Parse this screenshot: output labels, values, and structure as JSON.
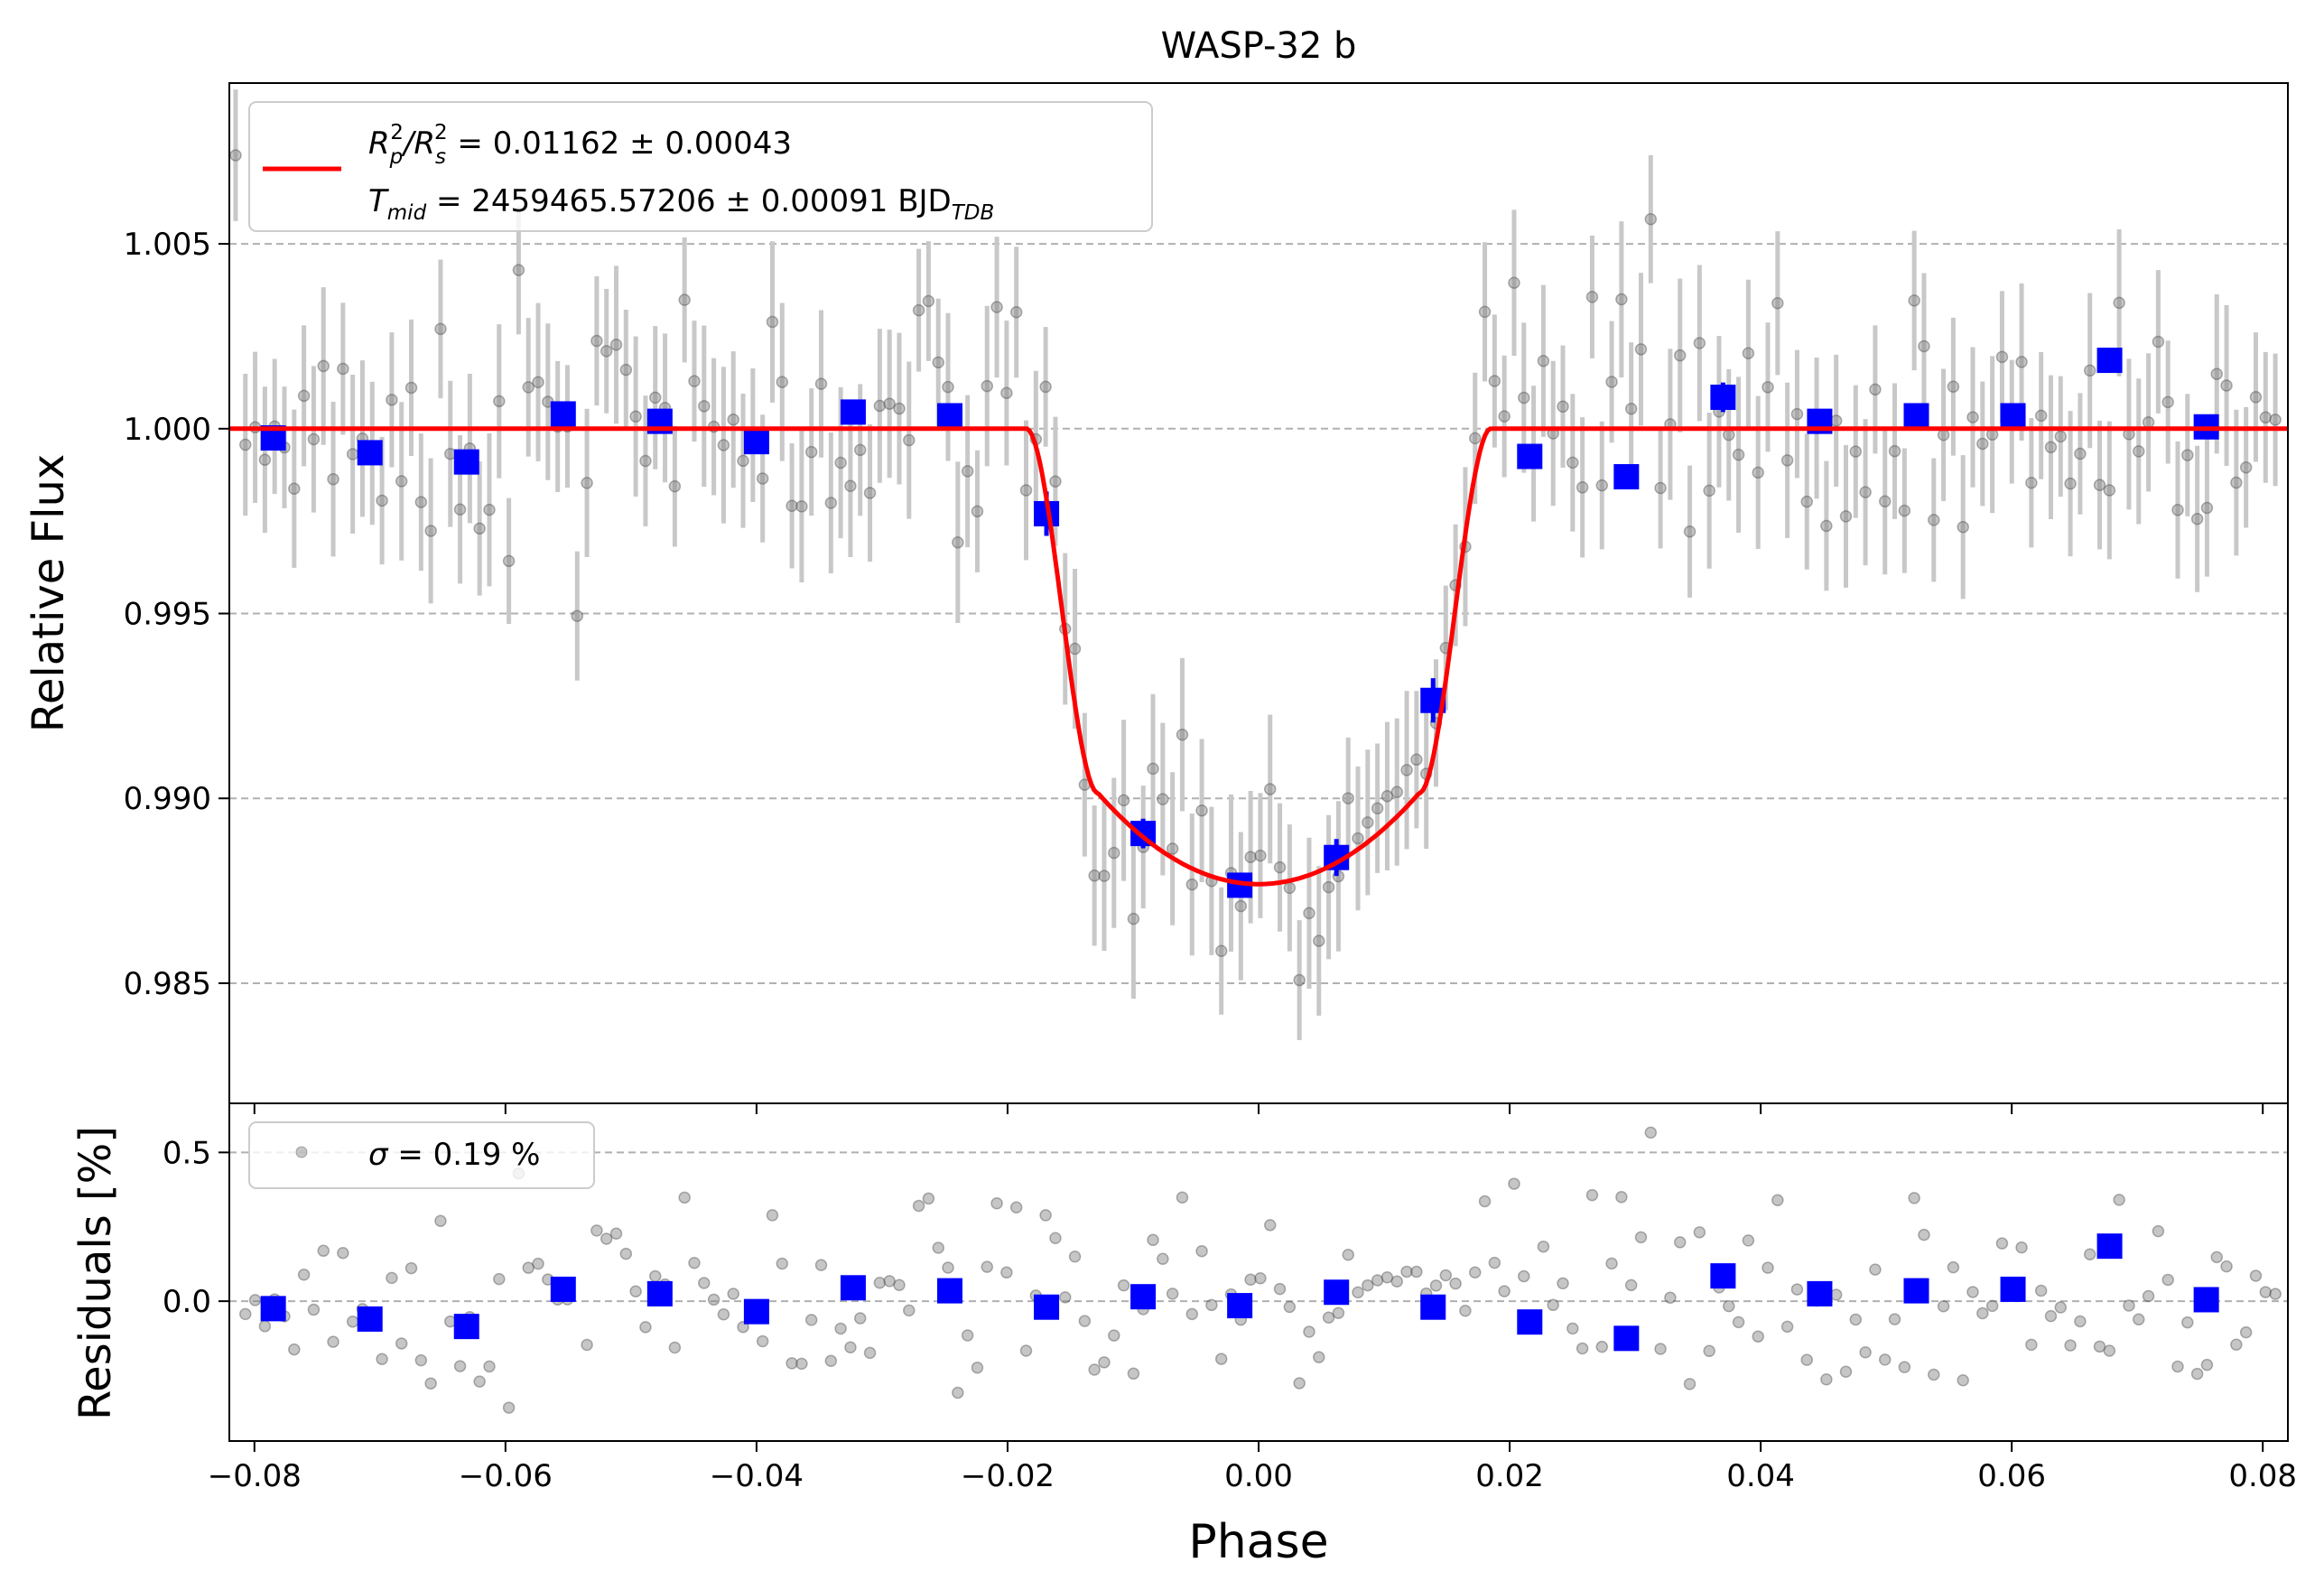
{
  "chart_data": [
    {
      "type": "scatter",
      "panel": "main",
      "title": "WASP-32 b",
      "xlabel": "",
      "ylabel": "Relative Flux",
      "xlim": [
        -0.082,
        0.082
      ],
      "ylim": [
        0.98175,
        1.00935
      ],
      "grid": "horizontal dashed",
      "y_ticks": [
        0.985,
        0.99,
        0.995,
        1.0,
        1.005
      ],
      "y_tick_labels": [
        "0.985",
        "0.990",
        "0.995",
        "1.000",
        "1.005"
      ],
      "legend": {
        "placement": "top-left",
        "line1_prefix": "R",
        "line1_sub1": "p",
        "line1_sup1": "2",
        "line1_mid": "/R",
        "line1_sub2": "s",
        "line1_sup2": "2",
        "line1_value": " = 0.01162 ± 0.00043",
        "line2_prefix": "T",
        "line2_sub": "mid",
        "line2_value": " = 2459465.57206 ± 0.00091 BJD",
        "line2_unit_sub": "TDB"
      },
      "model": {
        "name": "transit model",
        "color": "#ff0000",
        "depth": 0.01232,
        "t1": 0.0185,
        "t2": 0.0128
      },
      "binned": {
        "color": "#0000ff",
        "x": [
          -0.0785,
          -0.0708,
          -0.0631,
          -0.0554,
          -0.0477,
          -0.04,
          -0.0323,
          -0.0246,
          -0.0169,
          -0.0092,
          -0.0015,
          0.0062,
          0.0139,
          0.0216,
          0.0293,
          0.037,
          0.0447,
          0.0524,
          0.0601,
          0.0678,
          0.0755
        ],
        "y": [
          0.99975,
          0.99935,
          0.9991,
          1.0004,
          1.0002,
          0.99965,
          1.00045,
          1.00035,
          0.9977,
          0.98905,
          0.98765,
          0.9884,
          0.99265,
          0.99925,
          0.9987,
          1.00085,
          1.0002,
          1.00035,
          1.00035,
          1.00185,
          1.00005
        ],
        "err": [
          0.0003,
          0.0003,
          0.0003,
          0.0003,
          0.0003,
          0.0003,
          0.0003,
          0.0003,
          0.0006,
          0.0004,
          0.0003,
          0.0005,
          0.0006,
          0.0003,
          0.0003,
          0.0004,
          0.0003,
          0.0003,
          0.0003,
          0.0003,
          0.0003
        ]
      },
      "raw_points": {
        "n": 210,
        "x_range": [
          -0.0815,
          0.081
        ],
        "typical_err": 0.0019,
        "scatter_sigma": 0.0019,
        "color": "#808080"
      }
    },
    {
      "type": "scatter",
      "panel": "residuals",
      "xlabel": "Phase",
      "ylabel": "Residuals [%]",
      "xlim": [
        -0.082,
        0.082
      ],
      "ylim": [
        -0.47,
        0.665
      ],
      "grid": "horizontal dashed",
      "x_ticks": [
        -0.08,
        -0.06,
        -0.04,
        -0.02,
        0.0,
        0.02,
        0.04,
        0.06,
        0.08
      ],
      "x_tick_labels": [
        "−0.08",
        "−0.06",
        "−0.04",
        "−0.02",
        "0.00",
        "0.02",
        "0.04",
        "0.06",
        "0.08"
      ],
      "y_ticks": [
        0.0,
        0.5
      ],
      "y_tick_labels": [
        "0.0",
        "0.5"
      ],
      "legend": {
        "placement": "top-left",
        "label_symbol": "σ",
        "label_value": " = 0.19 %"
      },
      "binned": {
        "color": "#0000ff",
        "x": [
          -0.0785,
          -0.0708,
          -0.0631,
          -0.0554,
          -0.0477,
          -0.04,
          -0.0323,
          -0.0246,
          -0.0169,
          -0.0092,
          -0.0015,
          0.0062,
          0.0139,
          0.0216,
          0.0293,
          0.037,
          0.0447,
          0.0524,
          0.0601,
          0.0678,
          0.0755
        ],
        "y": [
          -0.025,
          -0.06,
          -0.085,
          0.04,
          0.025,
          -0.035,
          0.045,
          0.035,
          -0.02,
          0.015,
          -0.015,
          0.03,
          -0.02,
          -0.07,
          -0.125,
          0.085,
          0.025,
          0.035,
          0.04,
          0.185,
          0.005
        ]
      }
    }
  ]
}
